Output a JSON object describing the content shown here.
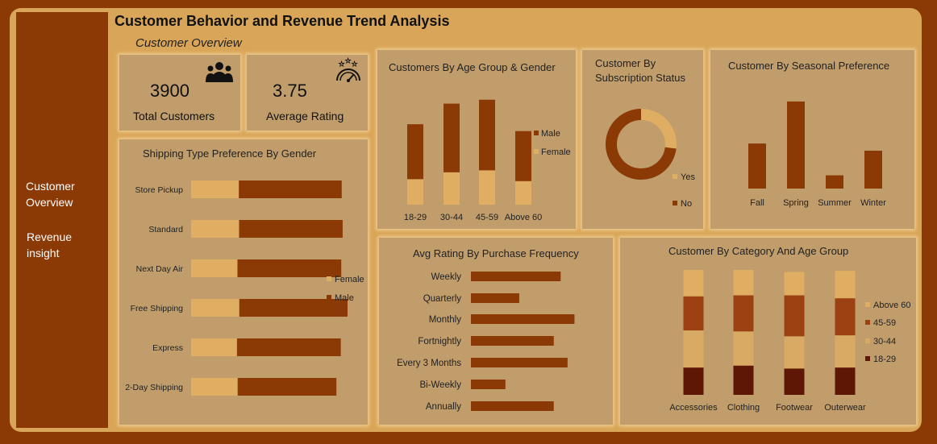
{
  "header": {
    "title": "Customer Behavior and Revenue Trend Analysis",
    "subtitle": "Customer Overview"
  },
  "sidebar": {
    "items": [
      {
        "label": "Customer Overview"
      },
      {
        "label": "Revenue insight"
      }
    ]
  },
  "kpis": {
    "total_customers": {
      "value": "3900",
      "label": "Total Customers",
      "icon": "people-group-icon"
    },
    "average_rating": {
      "value": "3.75",
      "label": "Average Rating",
      "icon": "rating-gauge-icon"
    }
  },
  "colors": {
    "dark": "#8b3a06",
    "light": "#dfae62",
    "mid": "#9c4212",
    "tan": "#d9aa64",
    "darkest": "#5e1704",
    "card": "#c19d6c",
    "bg": "#d9a558"
  },
  "chart_data": [
    {
      "id": "age-gender",
      "type": "bar",
      "stacked": true,
      "title": "Customers By Age Group & Gender",
      "categories": [
        "18-29",
        "30-44",
        "45-59",
        "Above 60"
      ],
      "series": [
        {
          "name": "Female",
          "values": [
            260,
            330,
            350,
            240
          ]
        },
        {
          "name": "Male",
          "values": [
            560,
            700,
            720,
            510
          ]
        }
      ],
      "ylim": [
        0,
        1150
      ],
      "legend": "right"
    },
    {
      "id": "subscription",
      "type": "pie",
      "donut": true,
      "title": "Customer By Subscription Status",
      "labels": [
        "Yes",
        "No"
      ],
      "values": [
        1053,
        2847
      ],
      "legend": "bottom-right"
    },
    {
      "id": "seasonal",
      "type": "bar",
      "title": "Customer By Seasonal Preference",
      "categories": [
        "Fall",
        "Spring",
        "Summer",
        "Winter"
      ],
      "values": [
        975,
        1530,
        555,
        880
      ],
      "ylim": [
        380,
        1700
      ]
    },
    {
      "id": "shipping",
      "type": "bar",
      "orientation": "horizontal",
      "stacked": true,
      "title": "Shipping Type Preference By Gender",
      "categories": [
        "Store Pickup",
        "Standard",
        "Next Day Air",
        "Free Shipping",
        "Express",
        "2-Day Shipping"
      ],
      "series": [
        {
          "name": "Female",
          "values": [
            206,
            207,
            200,
            208,
            198,
            201
          ]
        },
        {
          "name": "Male",
          "values": [
            444,
            447,
            448,
            467,
            448,
            426
          ]
        }
      ],
      "xlim": [
        0,
        950
      ],
      "legend": "right"
    },
    {
      "id": "rating-frequency",
      "type": "bar",
      "orientation": "horizontal",
      "title": "Avg Rating By Purchase Frequency",
      "categories": [
        "Weekly",
        "Quarterly",
        "Monthly",
        "Fortnightly",
        "Every 3 Months",
        "Bi-Weekly",
        "Annually"
      ],
      "values": [
        3.78,
        3.72,
        3.8,
        3.77,
        3.79,
        3.7,
        3.77
      ],
      "xlim": [
        3.65,
        3.81
      ]
    },
    {
      "id": "category-age",
      "type": "bar",
      "stacked": true,
      "title": "Customer By Category And Age Group",
      "categories": [
        "Accessories",
        "Clothing",
        "Footwear",
        "Outerwear"
      ],
      "series": [
        {
          "name": "18-29",
          "values": [
            280,
            300,
            270,
            280
          ]
        },
        {
          "name": "30-44",
          "values": [
            380,
            350,
            330,
            330
          ]
        },
        {
          "name": "45-59",
          "values": [
            350,
            370,
            420,
            380
          ]
        },
        {
          "name": "Above 60",
          "values": [
            270,
            260,
            240,
            280
          ]
        }
      ],
      "ylim": [
        0,
        1280
      ],
      "legend": "right"
    }
  ]
}
